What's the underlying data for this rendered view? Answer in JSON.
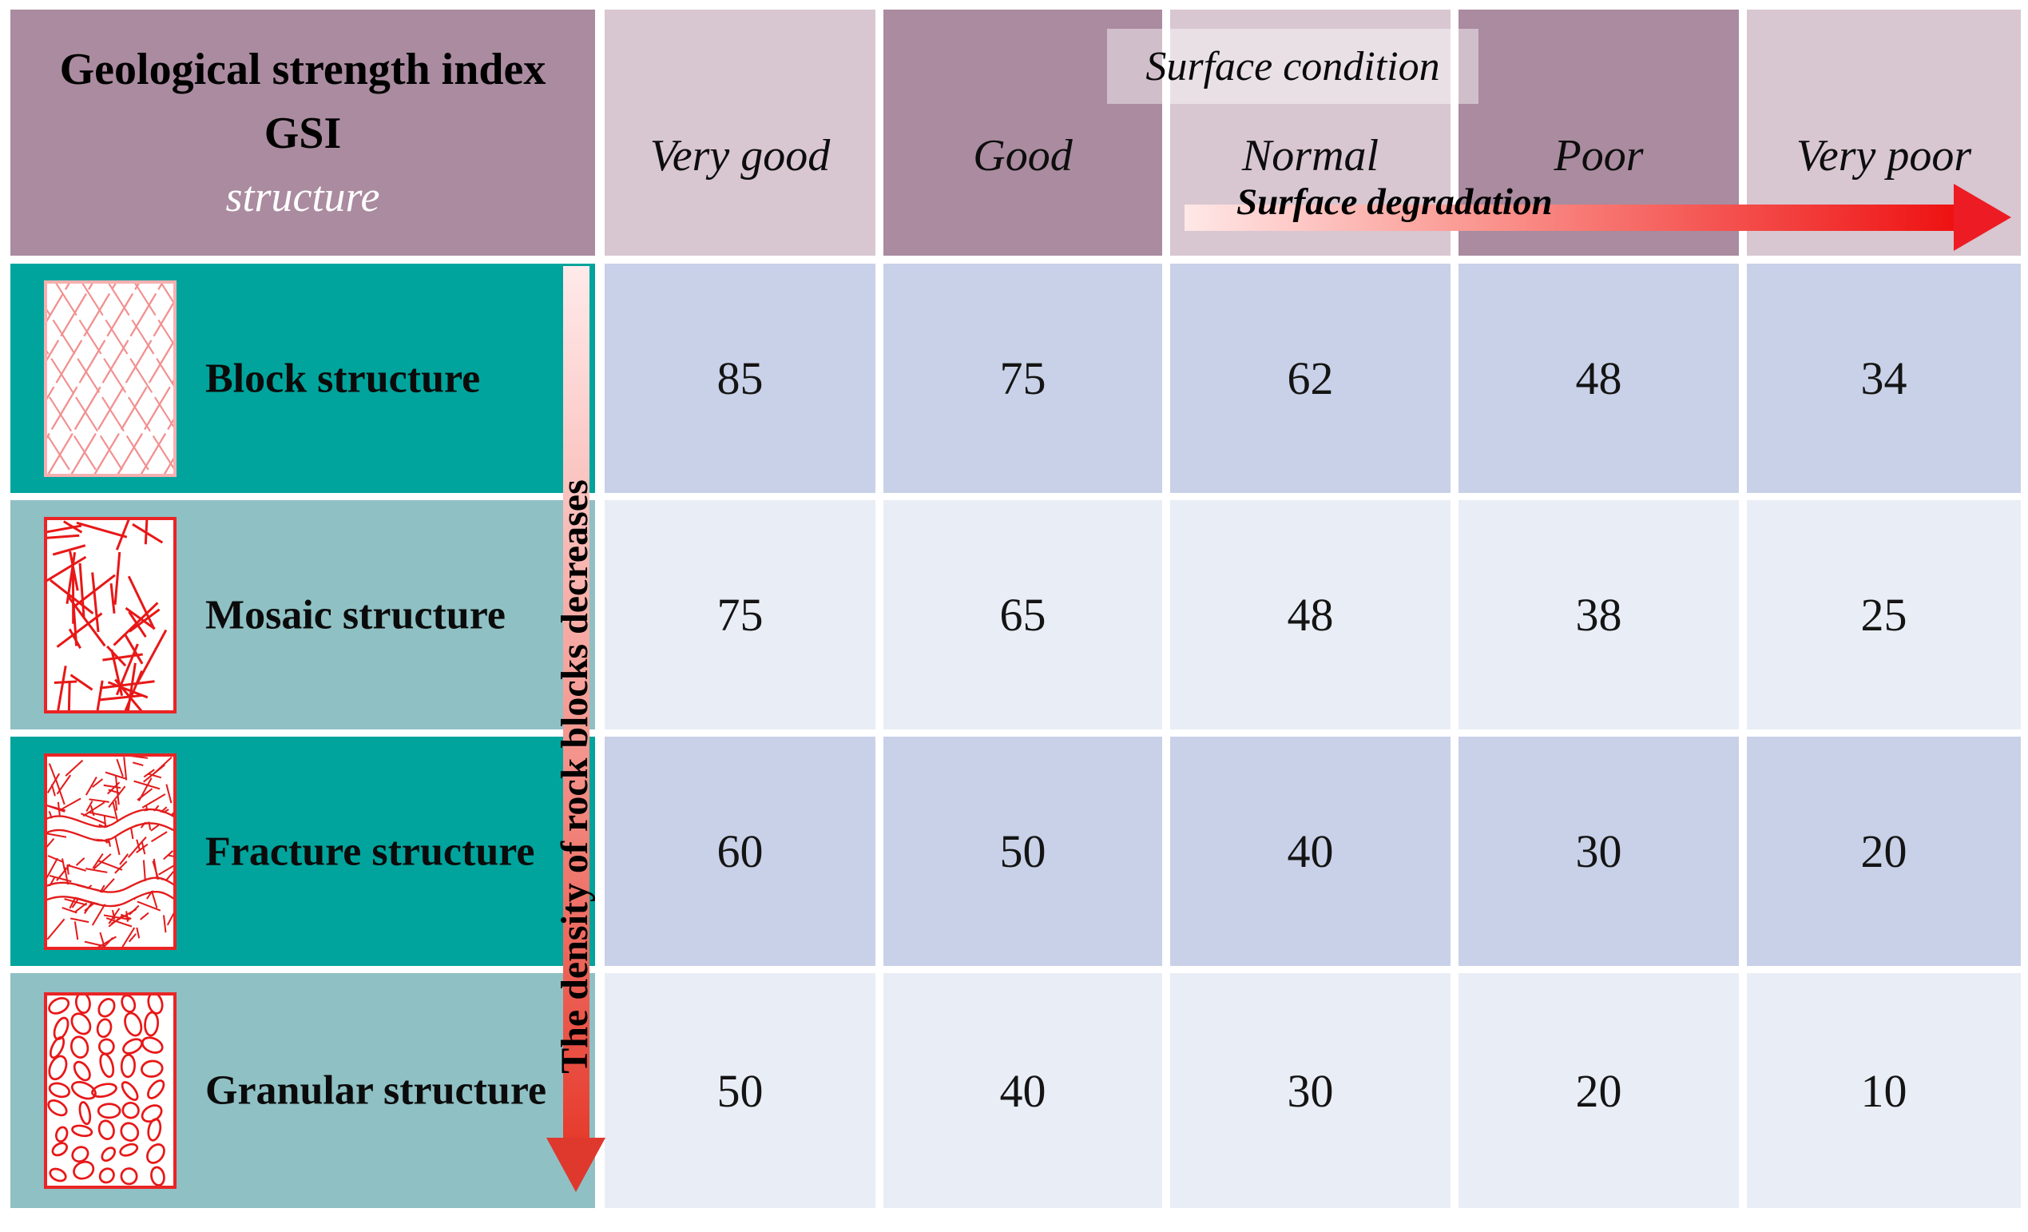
{
  "title": {
    "line1": "Geological strength index",
    "line2": "GSI",
    "line3": "structure"
  },
  "header": {
    "surface_condition": "Surface condition",
    "columns": [
      "Very good",
      "Good",
      "Normal",
      "Poor",
      "Very poor"
    ]
  },
  "annotations": {
    "surface_degradation": "Surface degradation",
    "density_arrow": "The density of rock blocks decreases"
  },
  "rows": [
    {
      "label": "Block structure",
      "icon": "block-structure-icon",
      "values": [
        85,
        75,
        62,
        48,
        34
      ]
    },
    {
      "label": "Mosaic structure",
      "icon": "mosaic-structure-icon",
      "values": [
        75,
        65,
        48,
        38,
        25
      ]
    },
    {
      "label": "Fracture structure",
      "icon": "fracture-structure-icon",
      "values": [
        60,
        50,
        40,
        30,
        20
      ]
    },
    {
      "label": "Granular structure",
      "icon": "granular-structure-icon",
      "values": [
        50,
        40,
        30,
        20,
        10
      ]
    }
  ],
  "colors": {
    "header_dark": "#aa8b9f",
    "header_light": "#d8c6d0",
    "teal_dark": "#00a49c",
    "teal_light": "#8fc0c4",
    "cell_dark": "#c8d1e7",
    "cell_light": "#e9edf6",
    "arrow_red": "#ed1c24",
    "pictogram_red": "#e81717"
  },
  "chart_data": {
    "type": "table",
    "title": "Geological strength index GSI",
    "row_header": "structure",
    "column_group": "Surface condition",
    "columns": [
      "Very good",
      "Good",
      "Normal",
      "Poor",
      "Very poor"
    ],
    "rows": [
      {
        "structure": "Block structure",
        "values": [
          85,
          75,
          62,
          48,
          34
        ]
      },
      {
        "structure": "Mosaic structure",
        "values": [
          75,
          65,
          48,
          38,
          25
        ]
      },
      {
        "structure": "Fracture structure",
        "values": [
          60,
          50,
          40,
          30,
          20
        ]
      },
      {
        "structure": "Granular structure",
        "values": [
          50,
          40,
          30,
          20,
          10
        ]
      }
    ],
    "annotations": [
      "Surface degradation (increases left to right)",
      "The density of rock blocks decreases (top to bottom)"
    ]
  }
}
